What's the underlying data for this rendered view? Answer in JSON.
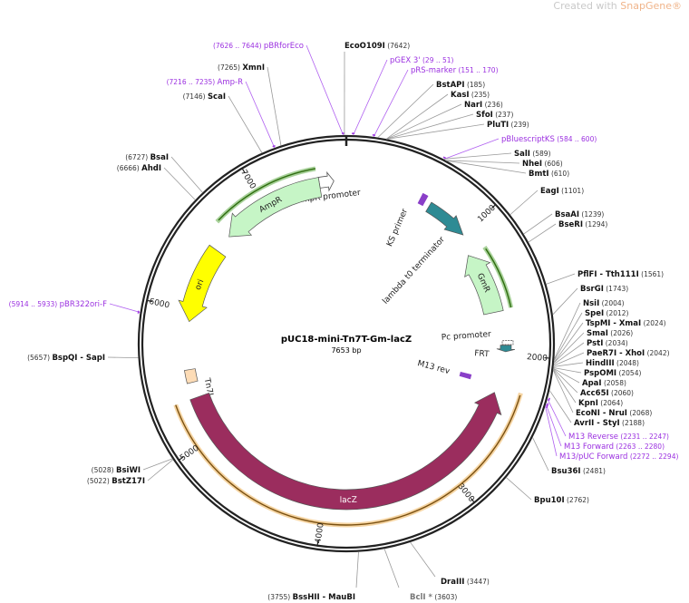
{
  "watermark": {
    "prefix": "Created with ",
    "brand": "SnapGene®"
  },
  "plasmid": {
    "name": "pUC18-mini-Tn7T-Gm-lacZ",
    "length_label": "7653 bp",
    "length": 7653
  },
  "ticks": [
    1000,
    2000,
    3000,
    4000,
    5000,
    6000,
    7000
  ],
  "features": [
    {
      "name": "AmpR promoter",
      "start": 7450,
      "end": 7560,
      "direction": "cw",
      "color": "#ffffff",
      "kind": "promoter"
    },
    {
      "name": "AmpR",
      "start": 6640,
      "end": 7450,
      "direction": "ccw",
      "color": "#c6f5c6",
      "kind": "cds"
    },
    {
      "name": "ori",
      "start": 5910,
      "end": 6500,
      "direction": "ccw",
      "color": "#ffff00",
      "kind": "origin"
    },
    {
      "name": "Tn7L",
      "start": 5440,
      "end": 5540,
      "direction": "none",
      "color": "#fddcb6",
      "kind": "box"
    },
    {
      "name": "lacZ",
      "start": 2300,
      "end": 5320,
      "direction": "ccw",
      "color": "#9b2d5e",
      "kind": "cds"
    },
    {
      "name": "KS primer",
      "start": 575,
      "end": 615,
      "direction": "none",
      "color": "#8a3fc8",
      "kind": "primer"
    },
    {
      "name": "lambda t0 terminator",
      "start": 660,
      "end": 1000,
      "direction": "cw",
      "color": "#2e8b94",
      "kind": "terminator"
    },
    {
      "name": "GmR",
      "start": 1150,
      "end": 1660,
      "direction": "ccw",
      "color": "#c6f5c6",
      "kind": "cds"
    },
    {
      "name": "Pc promoter",
      "start": 1890,
      "end": 1920,
      "direction": "none",
      "color": "#ffffff",
      "kind": "promoter"
    },
    {
      "name": "FRT",
      "start": 1925,
      "end": 1975,
      "direction": "cw",
      "color": "#2e8b94",
      "kind": "frt"
    },
    {
      "name": "M13 rev",
      "start": 2210,
      "end": 2250,
      "direction": "none",
      "color": "#8a3fc8",
      "kind": "primer"
    }
  ],
  "highlight_colors": {
    "orf_green": "#3f9a1e",
    "orf_orange": "#e8a030"
  },
  "sites": [
    {
      "name": "pBRforEco",
      "pos": "(7626 .. 7644)",
      "p": 7635,
      "primer": true
    },
    {
      "name": "XmnI",
      "pos": "(7265)",
      "p": 7265
    },
    {
      "name": "Amp-R",
      "pos": "(7216 .. 7235)",
      "p": 7225,
      "primer": true
    },
    {
      "name": "ScaI",
      "pos": "(7146)",
      "p": 7146
    },
    {
      "name": "BsaI",
      "pos": "(6727)",
      "p": 6727
    },
    {
      "name": "AhdI",
      "pos": "(6666)",
      "p": 6666
    },
    {
      "name": "pBR322ori-F",
      "pos": "(5914 .. 5933)",
      "p": 5923,
      "primer": true
    },
    {
      "name": "BspQI  - SapI",
      "pos": "(5657)",
      "p": 5657
    },
    {
      "name": "BsiWI",
      "pos": "(5028)",
      "p": 5028
    },
    {
      "name": "BstZ17I",
      "pos": "(5022)",
      "p": 5022
    },
    {
      "name": "BssHII  - MauBI",
      "pos": "(3755)",
      "p": 3755
    },
    {
      "name": "BclI *",
      "pos": "(3603)",
      "p": 3603,
      "grey": true
    },
    {
      "name": "DraIII",
      "pos": "(3447)",
      "p": 3447
    },
    {
      "name": "EcoO109I",
      "pos": "(7642)",
      "p": 7642
    },
    {
      "name": "pGEX 3'",
      "pos": "(29 .. 51)",
      "p": 40,
      "primer": true
    },
    {
      "name": "pRS-marker",
      "pos": "(151 .. 170)",
      "p": 160,
      "primer": true
    },
    {
      "name": "BstAPI",
      "pos": "(185)",
      "p": 185
    },
    {
      "name": "KasI",
      "pos": "(235)",
      "p": 235
    },
    {
      "name": "NarI",
      "pos": "(236)",
      "p": 236
    },
    {
      "name": "SfoI",
      "pos": "(237)",
      "p": 237
    },
    {
      "name": "PluTI",
      "pos": "(239)",
      "p": 239
    },
    {
      "name": "pBluescriptKS",
      "pos": "(584 .. 600)",
      "p": 592,
      "primer": true
    },
    {
      "name": "SalI",
      "pos": "(589)",
      "p": 589
    },
    {
      "name": "NheI",
      "pos": "(606)",
      "p": 606
    },
    {
      "name": "BmtI",
      "pos": "(610)",
      "p": 610
    },
    {
      "name": "EagI",
      "pos": "(1101)",
      "p": 1101
    },
    {
      "name": "BsaAI",
      "pos": "(1239)",
      "p": 1239
    },
    {
      "name": "BseRI",
      "pos": "(1294)",
      "p": 1294
    },
    {
      "name": "PflFI  - Tth111I",
      "pos": "(1561)",
      "p": 1561
    },
    {
      "name": "BsrGI",
      "pos": "(1743)",
      "p": 1743
    },
    {
      "name": "NsiI",
      "pos": "(2004)",
      "p": 2004
    },
    {
      "name": "SpeI",
      "pos": "(2012)",
      "p": 2012
    },
    {
      "name": "TspMI  - XmaI",
      "pos": "(2024)",
      "p": 2024
    },
    {
      "name": "SmaI",
      "pos": "(2026)",
      "p": 2026
    },
    {
      "name": "PstI",
      "pos": "(2034)",
      "p": 2034
    },
    {
      "name": "PaeR7I  - XhoI",
      "pos": "(2042)",
      "p": 2042
    },
    {
      "name": "HindIII",
      "pos": "(2048)",
      "p": 2048
    },
    {
      "name": "PspOMI",
      "pos": "(2054)",
      "p": 2054
    },
    {
      "name": "ApaI",
      "pos": "(2058)",
      "p": 2058
    },
    {
      "name": "Acc65I",
      "pos": "(2060)",
      "p": 2060
    },
    {
      "name": "KpnI",
      "pos": "(2064)",
      "p": 2064
    },
    {
      "name": "EcoNI  - NruI",
      "pos": "(2068)",
      "p": 2068
    },
    {
      "name": "AvrII  - StyI",
      "pos": "(2188)",
      "p": 2188
    },
    {
      "name": "M13 Reverse",
      "pos": "(2231 .. 2247)",
      "p": 2239,
      "primer": true
    },
    {
      "name": "M13 Forward",
      "pos": "(2263 .. 2280)",
      "p": 2271,
      "primer": true
    },
    {
      "name": "M13/pUC Forward",
      "pos": "(2272 .. 2294)",
      "p": 2283,
      "primer": true
    },
    {
      "name": "Bsu36I",
      "pos": "(2481)",
      "p": 2481
    },
    {
      "name": "Bpu10I",
      "pos": "(2762)",
      "p": 2762
    }
  ]
}
